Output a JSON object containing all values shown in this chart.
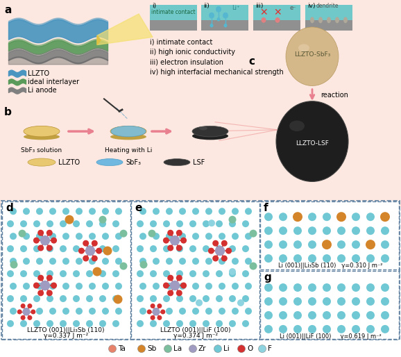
{
  "fig_width": 5.78,
  "fig_height": 5.14,
  "dpi": 100,
  "bg_top": "#fce8e0",
  "colors": {
    "Ta": "#e8836b",
    "Sb": "#d4852a",
    "La": "#7bbf9e",
    "Zr": "#a09bc0",
    "Li": "#6fc8d4",
    "O": "#d43030",
    "F": "#8ed4e0"
  },
  "legend_items": [
    {
      "label": "Ta",
      "color": "#e8836b"
    },
    {
      "label": "Sb",
      "color": "#d4852a"
    },
    {
      "label": "La",
      "color": "#7bbf9e"
    },
    {
      "label": "Zr",
      "color": "#a09bc0"
    },
    {
      "label": "Li",
      "color": "#6fc8d4"
    },
    {
      "label": "O",
      "color": "#d43030"
    },
    {
      "label": "F",
      "color": "#8ed4e0"
    }
  ],
  "panel_d_title": "LLZTO (001)||Li₃Sb (110)",
  "panel_d_gamma": "γ=0.337 J m⁻²",
  "panel_e_title": "LLZTO (001)||LiF (100)",
  "panel_e_gamma": "γ=0.374 J m⁻²",
  "panel_f_title": "Li (001)||Li₃Sb (110)   γ=0.310 J m⁻²",
  "panel_g_title": "Li (001)||LiF (100)     γ=0.619 J m⁻²",
  "top_section_labels": [
    "i) intimate contact",
    "ii) high ionic conductivity",
    "iii) electron insulation",
    "iv) high interfacial mechanical strength"
  ],
  "legend_llzto": "LLZTO",
  "legend_ideal": "ideal interlayer",
  "legend_li": "Li anode"
}
